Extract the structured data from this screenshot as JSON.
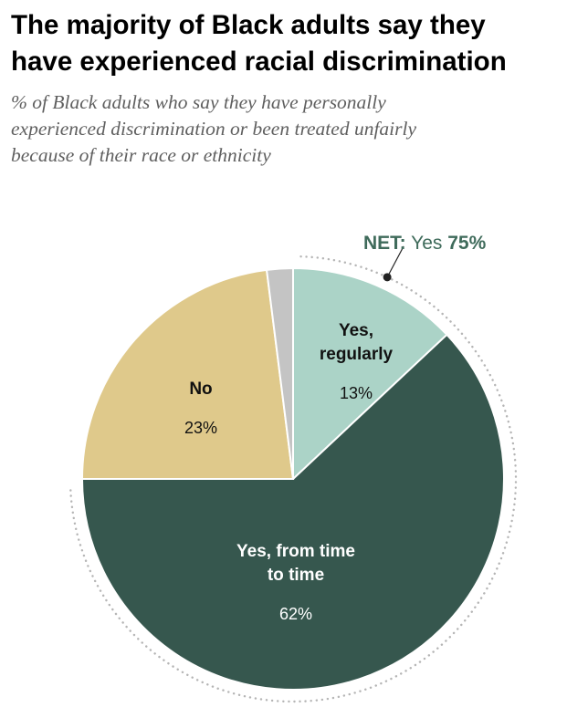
{
  "title_lines": [
    "The majority of Black adults say they",
    "have experienced racial discrimination"
  ],
  "subtitle_lines": [
    "% of Black adults who say they have personally",
    "experienced discrimination or been treated unfairly",
    "because of their race or ethnicity"
  ],
  "net": {
    "prefix": "NET:",
    "label": "Yes",
    "value": "75%"
  },
  "colors": {
    "yes_regularly": "#abd3c7",
    "yes_time_to_time": "#36574e",
    "no": "#dfc98b",
    "no_answer": "#c4c4c4",
    "net_text": "#3f6b5b"
  },
  "chart_data": {
    "type": "pie",
    "start": "12 o'clock, clockwise",
    "slices": [
      {
        "name_lines": [
          "Yes,",
          "regularly"
        ],
        "value": 13,
        "display": "13%",
        "color": "#abd3c7",
        "text_color": "#111111"
      },
      {
        "name_lines": [
          "Yes, from time",
          "to time"
        ],
        "value": 62,
        "display": "62%",
        "color": "#36574e",
        "text_color": "#ffffff"
      },
      {
        "name_lines": [
          "No"
        ],
        "value": 23,
        "display": "23%",
        "color": "#dfc98b",
        "text_color": "#111111"
      },
      {
        "name_lines": [],
        "value": 2,
        "display": "",
        "color": "#c4c4c4",
        "text_color": "#111111"
      }
    ]
  }
}
